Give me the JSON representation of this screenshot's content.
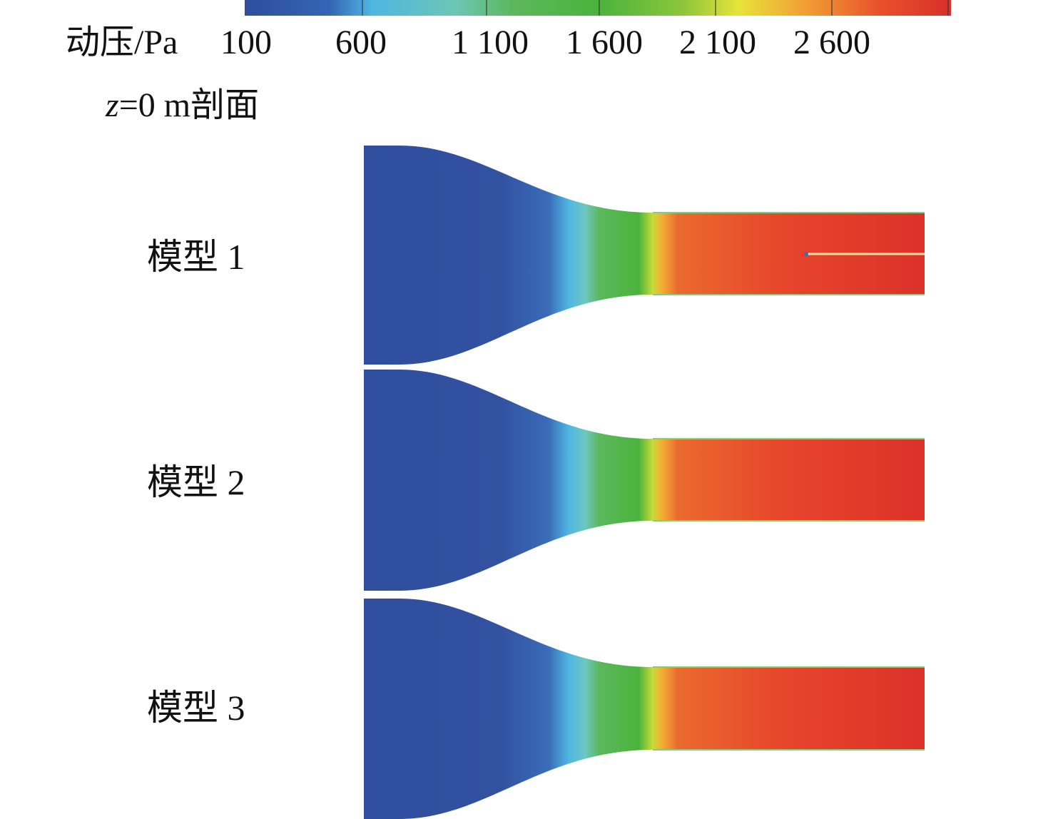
{
  "colorbar": {
    "title": "动压/Pa",
    "ticks": [
      "100",
      "600",
      "1 100",
      "1 600",
      "2 100",
      "2 600"
    ],
    "colors": [
      "#2f4e9e",
      "#3a7fc8",
      "#4fc3e0",
      "#5cb86a",
      "#4ab33c",
      "#c6d83a",
      "#ece23a",
      "#f0a030",
      "#e84a2a",
      "#d9302a"
    ]
  },
  "section": {
    "var": "z",
    "rest": "=0 m剖面"
  },
  "models": [
    {
      "label": "模型 1",
      "has_centerline": true
    },
    {
      "label": "模型 2",
      "has_centerline": false
    },
    {
      "label": "模型 3",
      "has_centerline": false
    }
  ]
}
